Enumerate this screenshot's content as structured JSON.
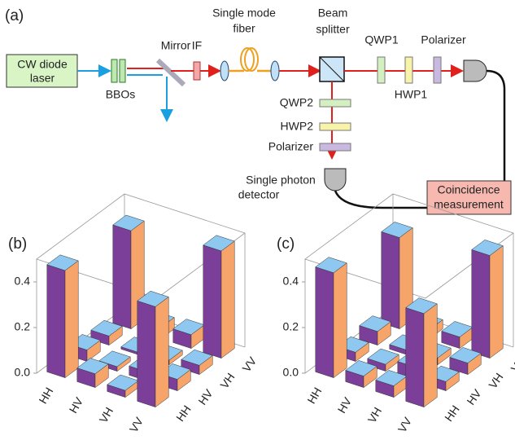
{
  "diagram": {
    "panel": "(a)",
    "laser": [
      "CW diode",
      "laser"
    ],
    "bbos": "BBOs",
    "mirror": "Mirror",
    "filter": "IF",
    "fiber": [
      "Single mode",
      "fiber"
    ],
    "splitter": [
      "Beam",
      "splitter"
    ],
    "qwp1": "QWP1",
    "hwp1": "HWP1",
    "polarizer1": "Polarizer",
    "qwp2": "QWP2",
    "hwp2": "HWP2",
    "polarizer2": "Polarizer",
    "detector": [
      "Single photon",
      "detector"
    ],
    "coincidence": [
      "Coincidence",
      "measurement"
    ]
  },
  "chart_data": [
    {
      "type": "bar3d",
      "title": "(b)",
      "rows": [
        "HH",
        "HV",
        "VH",
        "VV"
      ],
      "columns": [
        "HH",
        "HV",
        "VH",
        "VV"
      ],
      "values": [
        [
          0.47,
          0.05,
          0.04,
          0.43
        ],
        [
          0.06,
          0.02,
          0.01,
          0.05
        ],
        [
          0.03,
          0.04,
          0.02,
          0.06
        ],
        [
          0.44,
          0.05,
          0.04,
          0.47
        ]
      ],
      "zlim": [
        0,
        0.5
      ],
      "zticks": [
        {
          "value": 0,
          "label": "0.0"
        },
        0.2,
        0.4
      ],
      "top_color": "#8ec8f0",
      "left_color": "#7b3f9a",
      "right_color": "#f7a46b"
    },
    {
      "type": "bar3d",
      "title": "(c)",
      "rows": [
        "HH",
        "HV",
        "VH",
        "VV"
      ],
      "columns": [
        "HH",
        "HV",
        "VH",
        "VV"
      ],
      "values": [
        [
          0.46,
          0.04,
          0.06,
          0.4
        ],
        [
          0.05,
          0.03,
          0.02,
          0.04
        ],
        [
          0.05,
          0.06,
          0.03,
          0.05
        ],
        [
          0.41,
          0.04,
          0.05,
          0.45
        ]
      ],
      "zlim": [
        0,
        0.5
      ],
      "zticks": [
        {
          "value": 0,
          "label": "0.0"
        },
        0.2,
        0.4
      ],
      "top_color": "#8ec8f0",
      "left_color": "#7b3f9a",
      "right_color": "#f7a46b"
    }
  ]
}
